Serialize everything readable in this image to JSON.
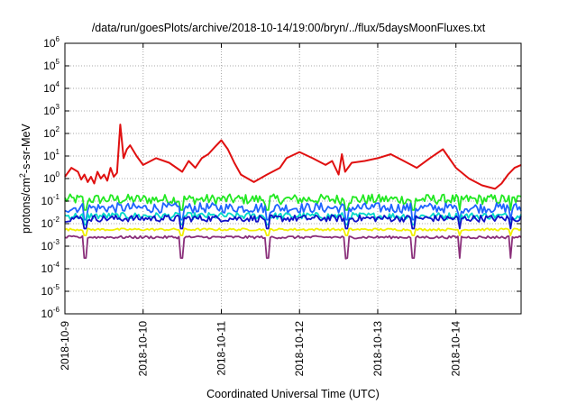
{
  "chart_data": {
    "type": "line",
    "title": "/data/run/goesPlots/archive/2018-10-14/19:00/bryn/../flux/5daysMoonFluxes.txt",
    "xlabel": "Coordinated Universal Time (UTC)",
    "ylabel_base": "protons/cm",
    "ylabel_sup": "2",
    "ylabel_rest": "-s-sr-MeV",
    "xlim": [
      "2018-10-09",
      "2018-10-14T20:00"
    ],
    "ylim": [
      1e-06,
      1000000.0
    ],
    "yscale": "log",
    "grid": true,
    "x_ticks": [
      "2018-10-9",
      "2018-10-10",
      "2018-10-11",
      "2018-10-12",
      "2018-10-13",
      "2018-10-14"
    ],
    "y_ticks": [
      {
        "base": "10",
        "exp": "-6"
      },
      {
        "base": "10",
        "exp": "-5"
      },
      {
        "base": "10",
        "exp": "-4"
      },
      {
        "base": "10",
        "exp": "-3"
      },
      {
        "base": "10",
        "exp": "-2"
      },
      {
        "base": "10",
        "exp": "-1"
      },
      {
        "base": "10",
        "exp": "0"
      },
      {
        "base": "10",
        "exp": "1"
      },
      {
        "base": "10",
        "exp": "2"
      },
      {
        "base": "10",
        "exp": "3"
      },
      {
        "base": "10",
        "exp": "4"
      },
      {
        "base": "10",
        "exp": "5"
      },
      {
        "base": "10",
        "exp": "6"
      }
    ],
    "series": [
      {
        "color": "#e01010",
        "x": [
          "2018-10-09T00:00",
          "2018-10-09T02:00",
          "2018-10-09T04:00",
          "2018-10-09T05:00",
          "2018-10-09T06:00",
          "2018-10-09T07:00",
          "2018-10-09T08:00",
          "2018-10-09T09:00",
          "2018-10-09T10:00",
          "2018-10-09T11:00",
          "2018-10-09T12:00",
          "2018-10-09T13:00",
          "2018-10-09T14:00",
          "2018-10-09T15:00",
          "2018-10-09T16:00",
          "2018-10-09T17:00",
          "2018-10-09T18:00",
          "2018-10-09T19:00",
          "2018-10-09T20:00",
          "2018-10-09T22:00",
          "2018-10-10T00:00",
          "2018-10-10T04:00",
          "2018-10-10T08:00",
          "2018-10-10T12:00",
          "2018-10-10T14:00",
          "2018-10-10T16:00",
          "2018-10-10T18:00",
          "2018-10-10T20:00",
          "2018-10-10T22:00",
          "2018-10-11T00:00",
          "2018-10-11T02:00",
          "2018-10-11T04:00",
          "2018-10-11T06:00",
          "2018-10-11T10:00",
          "2018-10-11T14:00",
          "2018-10-11T18:00",
          "2018-10-11T20:00",
          "2018-10-12T00:00",
          "2018-10-12T04:00",
          "2018-10-12T08:00",
          "2018-10-12T10:00",
          "2018-10-12T12:00",
          "2018-10-12T13:00",
          "2018-10-12T14:00",
          "2018-10-12T16:00",
          "2018-10-12T20:00",
          "2018-10-13T00:00",
          "2018-10-13T04:00",
          "2018-10-13T08:00",
          "2018-10-13T12:00",
          "2018-10-13T16:00",
          "2018-10-13T20:00",
          "2018-10-14T00:00",
          "2018-10-14T04:00",
          "2018-10-14T08:00",
          "2018-10-14T12:00",
          "2018-10-14T14:00",
          "2018-10-14T16:00",
          "2018-10-14T18:00",
          "2018-10-14T20:00"
        ],
        "y": [
          1.2,
          3,
          2,
          0.9,
          1.5,
          0.7,
          1.2,
          0.6,
          2,
          1,
          1.5,
          0.8,
          3,
          1.2,
          1.8,
          250,
          8,
          20,
          30,
          10,
          4,
          8,
          5,
          2,
          6,
          3,
          8,
          12,
          25,
          50,
          20,
          5,
          1.5,
          0.7,
          1.5,
          3,
          8,
          15,
          8,
          4,
          6,
          1.5,
          12,
          2,
          5,
          6,
          8,
          12,
          6,
          3,
          8,
          20,
          3,
          1,
          0.5,
          0.35,
          0.6,
          1.5,
          3,
          4
        ]
      },
      {
        "color": "#22e822",
        "base": 0.12,
        "spread": 0.45,
        "dip": 0.04
      },
      {
        "color": "#1e64ff",
        "base": 0.05,
        "spread": 0.45,
        "dip": 0.015
      },
      {
        "color": "#00d8c8",
        "base": 0.022,
        "spread": 0.3,
        "dip": 0.009
      },
      {
        "color": "#1010c8",
        "base": 0.017,
        "spread": 0.3,
        "dip": 0.006
      },
      {
        "color": "#f0f000",
        "base": 0.0055,
        "spread": 0.1,
        "dip": 0.003
      },
      {
        "color": "#8a2f7a",
        "base": 0.0025,
        "spread": 0.12,
        "dip": 0.0003
      }
    ]
  }
}
